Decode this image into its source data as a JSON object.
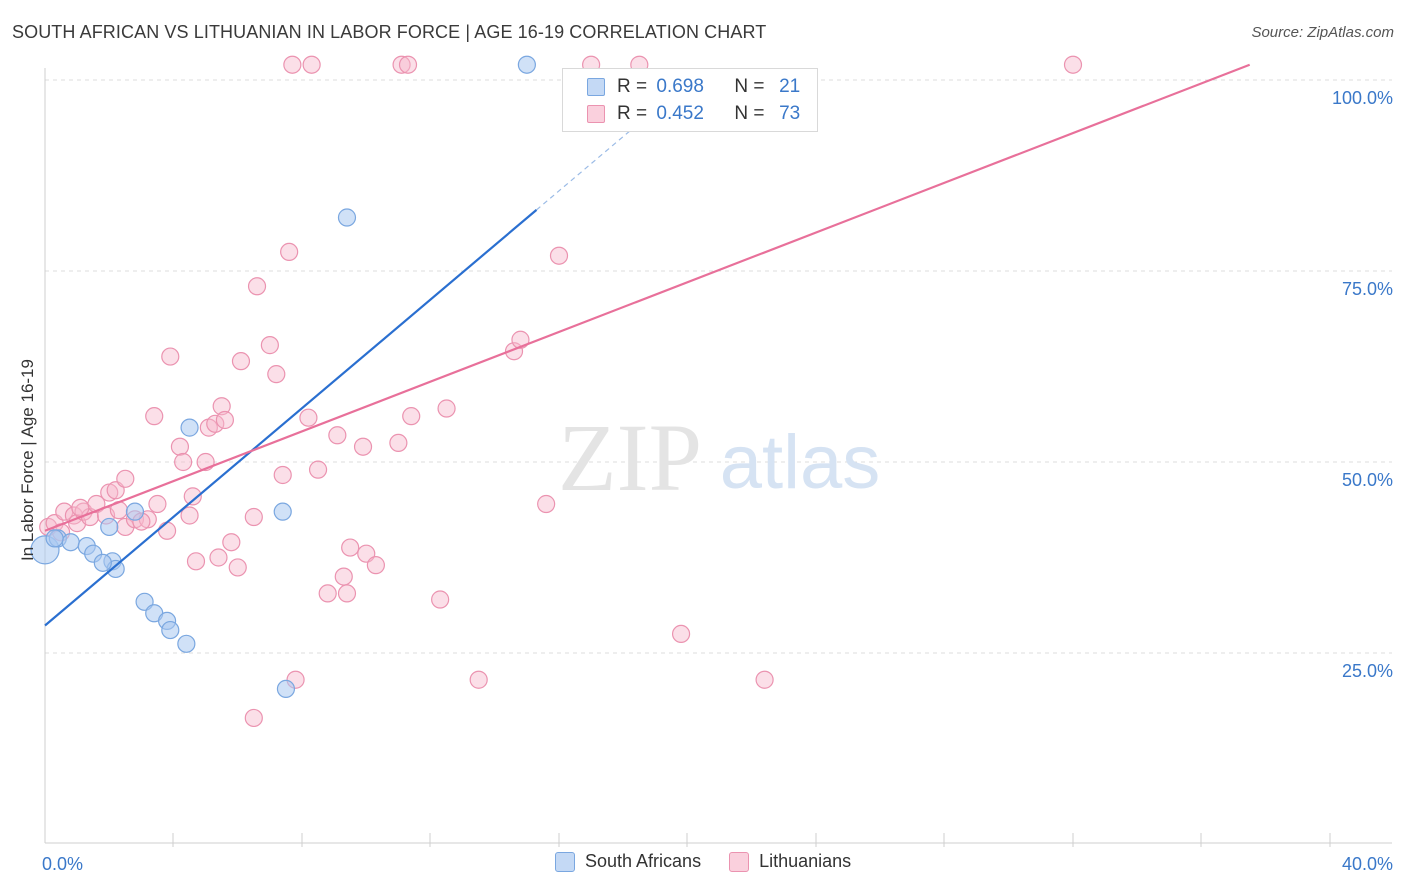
{
  "title": "SOUTH AFRICAN VS LITHUANIAN IN LABOR FORCE | AGE 16-19 CORRELATION CHART",
  "source": "Source: ZipAtlas.com",
  "watermark": {
    "zip": "ZIP",
    "atlas": "atlas"
  },
  "legend": {
    "rows": [
      {
        "r_label": "R =",
        "r_value": "0.698",
        "n_label": "N =",
        "n_value": "21"
      },
      {
        "r_label": "R =",
        "r_value": "0.452",
        "n_label": "N =",
        "n_value": "73"
      }
    ]
  },
  "bottom_legend": {
    "south_africans": "South Africans",
    "lithuanians": "Lithuanians"
  },
  "colors": {
    "blue_fill": "#a9c8f0",
    "blue_stroke": "#7aa7e0",
    "blue_line": "#2a6fd0",
    "pink_fill": "#f6b8cb",
    "pink_stroke": "#eb93b0",
    "pink_line": "#e8709a",
    "axis_text": "#3a78c9",
    "grid": "#dcdcdc"
  },
  "chart_data": {
    "type": "scatter",
    "title": "SOUTH AFRICAN VS LITHUANIAN IN LABOR FORCE | AGE 16-19 CORRELATION CHART",
    "xlabel": "",
    "ylabel": "In Labor Force | Age 16-19",
    "xlim": [
      0,
      40
    ],
    "ylim": [
      0,
      100
    ],
    "x_tick_labels": [
      "0.0%",
      "40.0%"
    ],
    "y_tick_labels": [
      "100.0%",
      "75.0%",
      "50.0%",
      "25.0%"
    ],
    "y_ticks": [
      100,
      75,
      50,
      25
    ],
    "series": [
      {
        "name": "South Africans",
        "R": 0.698,
        "N": 21,
        "trend": {
          "x0": 0,
          "y0": 28.6,
          "x1": 15.3,
          "y1": 83.0,
          "dash_to_x": 18.5
        },
        "points": [
          [
            0.0,
            38.5
          ],
          [
            0.4,
            40.0
          ],
          [
            0.8,
            39.5
          ],
          [
            1.3,
            39.0
          ],
          [
            1.5,
            38.0
          ],
          [
            2.0,
            41.5
          ],
          [
            2.1,
            37.0
          ],
          [
            2.2,
            36.0
          ],
          [
            2.8,
            43.5
          ],
          [
            3.1,
            31.7
          ],
          [
            3.4,
            30.2
          ],
          [
            3.8,
            29.2
          ],
          [
            3.9,
            28.0
          ],
          [
            4.4,
            26.2
          ],
          [
            4.5,
            54.5
          ],
          [
            7.4,
            43.5
          ],
          [
            7.5,
            20.3
          ],
          [
            9.4,
            82.0
          ],
          [
            15.0,
            102.0
          ],
          [
            0.3,
            40.0
          ],
          [
            1.8,
            36.8
          ]
        ]
      },
      {
        "name": "Lithuanians",
        "R": 0.452,
        "N": 73,
        "trend": {
          "x0": 0,
          "y0": 41.0,
          "x1": 37.5,
          "y1": 102.0
        },
        "points": [
          [
            0.1,
            41.5
          ],
          [
            0.3,
            42.0
          ],
          [
            0.6,
            43.5
          ],
          [
            0.9,
            43.0
          ],
          [
            1.0,
            42.0
          ],
          [
            1.2,
            43.5
          ],
          [
            1.4,
            42.8
          ],
          [
            1.6,
            44.5
          ],
          [
            1.9,
            43.0
          ],
          [
            2.0,
            46.0
          ],
          [
            2.2,
            46.3
          ],
          [
            2.5,
            47.8
          ],
          [
            2.5,
            41.5
          ],
          [
            2.8,
            42.5
          ],
          [
            3.2,
            42.5
          ],
          [
            3.4,
            56.0
          ],
          [
            3.5,
            44.5
          ],
          [
            3.8,
            41.0
          ],
          [
            3.9,
            63.8
          ],
          [
            4.2,
            52.0
          ],
          [
            4.3,
            50.0
          ],
          [
            4.5,
            43.0
          ],
          [
            4.7,
            37.0
          ],
          [
            5.0,
            50.0
          ],
          [
            5.1,
            54.5
          ],
          [
            5.3,
            55.0
          ],
          [
            5.5,
            57.3
          ],
          [
            5.6,
            55.5
          ],
          [
            5.8,
            39.5
          ],
          [
            5.4,
            37.5
          ],
          [
            6.0,
            36.2
          ],
          [
            6.1,
            63.2
          ],
          [
            6.6,
            73.0
          ],
          [
            6.5,
            42.8
          ],
          [
            7.0,
            65.3
          ],
          [
            7.2,
            61.5
          ],
          [
            7.4,
            48.3
          ],
          [
            7.6,
            77.5
          ],
          [
            7.8,
            21.5
          ],
          [
            6.5,
            16.5
          ],
          [
            8.2,
            55.8
          ],
          [
            8.5,
            49.0
          ],
          [
            8.8,
            32.8
          ],
          [
            9.1,
            53.5
          ],
          [
            9.3,
            35.0
          ],
          [
            9.4,
            32.8
          ],
          [
            9.5,
            38.8
          ],
          [
            10.0,
            38.0
          ],
          [
            10.3,
            36.5
          ],
          [
            9.9,
            52.0
          ],
          [
            11.0,
            52.5
          ],
          [
            11.4,
            56.0
          ],
          [
            12.3,
            32.0
          ],
          [
            12.5,
            57.0
          ],
          [
            13.5,
            21.5
          ],
          [
            14.6,
            64.5
          ],
          [
            14.8,
            66.0
          ],
          [
            15.6,
            44.5
          ],
          [
            16.0,
            77.0
          ],
          [
            19.8,
            27.5
          ],
          [
            22.4,
            21.5
          ],
          [
            7.7,
            102.0
          ],
          [
            8.3,
            102.0
          ],
          [
            11.1,
            102.0
          ],
          [
            11.3,
            102.0
          ],
          [
            17.0,
            102.0
          ],
          [
            18.5,
            102.0
          ],
          [
            32.0,
            102.0
          ],
          [
            0.5,
            40.8
          ],
          [
            1.1,
            44.0
          ],
          [
            2.3,
            43.7
          ],
          [
            3.0,
            42.2
          ],
          [
            4.6,
            45.5
          ]
        ]
      }
    ]
  }
}
